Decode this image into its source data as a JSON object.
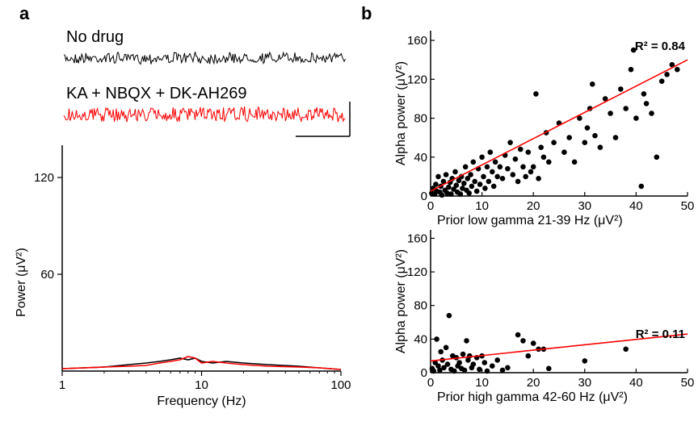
{
  "panels": {
    "a": "a",
    "b": "b"
  },
  "traces": {
    "no_drug_label": "No drug",
    "drug_label": "KA + NBQX + DK-AH269",
    "colors": {
      "no_drug": "#000000",
      "drug": "#ff0000"
    }
  },
  "chart_data": [
    {
      "type": "line",
      "panel": "a",
      "xlabel": "Frequency (Hz)",
      "ylabel": "Power (μV²)",
      "xscale": "log",
      "xlim": [
        1,
        100
      ],
      "ylim": [
        0,
        140
      ],
      "xticks": [
        1,
        10,
        100
      ],
      "yticks": [
        60,
        120
      ],
      "series": [
        {
          "color": "#000000",
          "x": [
            1,
            2,
            3,
            4,
            5,
            6,
            7,
            8,
            9,
            10,
            12,
            15,
            20,
            30,
            50,
            70,
            100
          ],
          "y": [
            1.5,
            2.5,
            4,
            5,
            6,
            7,
            8,
            7,
            8,
            6,
            5,
            6,
            5,
            4,
            3,
            2,
            1
          ]
        },
        {
          "color": "#ff0000",
          "x": [
            1,
            2,
            3,
            4,
            5,
            6,
            7,
            8,
            9,
            10,
            12,
            15,
            20,
            30,
            50,
            70,
            100
          ],
          "y": [
            1.5,
            2.5,
            3,
            3.5,
            5,
            6,
            7,
            9,
            8,
            5,
            6,
            5,
            4,
            3,
            2.5,
            2,
            1
          ]
        }
      ]
    },
    {
      "type": "scatter",
      "panel": "b-top",
      "xlabel": "Prior low gamma  21-39 Hz (μV²)",
      "ylabel": "Alpha power (μV²)",
      "xlim": [
        0,
        50
      ],
      "ylim": [
        0,
        170
      ],
      "xticks": [
        0,
        10,
        20,
        30,
        40,
        50
      ],
      "yticks": [
        0,
        40,
        80,
        120,
        160
      ],
      "annotation": "R² = 0.84",
      "fit": {
        "x": [
          0,
          50
        ],
        "y": [
          5,
          140
        ],
        "color": "#ff0000"
      },
      "points": [
        [
          0.2,
          3
        ],
        [
          0.5,
          8
        ],
        [
          0.8,
          2
        ],
        [
          1,
          12
        ],
        [
          1.2,
          5
        ],
        [
          1.5,
          20
        ],
        [
          1.8,
          4
        ],
        [
          2,
          10
        ],
        [
          2.2,
          1
        ],
        [
          2.5,
          15
        ],
        [
          2.8,
          6
        ],
        [
          3,
          22
        ],
        [
          3.2,
          3
        ],
        [
          3.5,
          9
        ],
        [
          3.8,
          14
        ],
        [
          4,
          2
        ],
        [
          4.2,
          18
        ],
        [
          4.5,
          7
        ],
        [
          4.8,
          25
        ],
        [
          5,
          11
        ],
        [
          5.2,
          4
        ],
        [
          5.5,
          16
        ],
        [
          5.8,
          2
        ],
        [
          6,
          20
        ],
        [
          6.2,
          8
        ],
        [
          6.5,
          13
        ],
        [
          6.8,
          30
        ],
        [
          7,
          6
        ],
        [
          7.2,
          18
        ],
        [
          7.5,
          3
        ],
        [
          7.8,
          22
        ],
        [
          8,
          10
        ],
        [
          8.3,
          35
        ],
        [
          8.6,
          15
        ],
        [
          9,
          5
        ],
        [
          9.3,
          28
        ],
        [
          9.6,
          12
        ],
        [
          10,
          40
        ],
        [
          10.3,
          20
        ],
        [
          10.6,
          8
        ],
        [
          11,
          30
        ],
        [
          11.3,
          15
        ],
        [
          11.6,
          45
        ],
        [
          12,
          25
        ],
        [
          12.3,
          10
        ],
        [
          12.6,
          35
        ],
        [
          13,
          20
        ],
        [
          13.5,
          30
        ],
        [
          14,
          18
        ],
        [
          14.5,
          42
        ],
        [
          15,
          28
        ],
        [
          15.5,
          55
        ],
        [
          16,
          22
        ],
        [
          16.5,
          38
        ],
        [
          17,
          15
        ],
        [
          17.5,
          48
        ],
        [
          18,
          30
        ],
        [
          18.5,
          20
        ],
        [
          19,
          45
        ],
        [
          19.5,
          25
        ],
        [
          20,
          30
        ],
        [
          20.5,
          105
        ],
        [
          21,
          18
        ],
        [
          21.5,
          50
        ],
        [
          22,
          40
        ],
        [
          22.5,
          65
        ],
        [
          23,
          35
        ],
        [
          24,
          55
        ],
        [
          25,
          75
        ],
        [
          26,
          45
        ],
        [
          27,
          60
        ],
        [
          28,
          35
        ],
        [
          29,
          80
        ],
        [
          30,
          55
        ],
        [
          30.5,
          70
        ],
        [
          31,
          90
        ],
        [
          31.5,
          115
        ],
        [
          32,
          62
        ],
        [
          33,
          50
        ],
        [
          34,
          100
        ],
        [
          35,
          85
        ],
        [
          36,
          60
        ],
        [
          37,
          110
        ],
        [
          38,
          90
        ],
        [
          39,
          130
        ],
        [
          39.5,
          150
        ],
        [
          40,
          80
        ],
        [
          41,
          10
        ],
        [
          41.5,
          105
        ],
        [
          42,
          95
        ],
        [
          43,
          85
        ],
        [
          44,
          40
        ],
        [
          45,
          118
        ],
        [
          46,
          125
        ],
        [
          47,
          135
        ],
        [
          48,
          130
        ]
      ]
    },
    {
      "type": "scatter",
      "panel": "b-bottom",
      "xlabel": "Prior high gamma  42-60 Hz (μV²)",
      "ylabel": "Alpha power (μV²)",
      "xlim": [
        0,
        50
      ],
      "ylim": [
        0,
        170
      ],
      "xticks": [
        0,
        10,
        20,
        30,
        40,
        50
      ],
      "yticks": [
        0,
        40,
        80,
        120,
        160
      ],
      "annotation": "R² = 0.11",
      "fit": {
        "x": [
          0,
          50
        ],
        "y": [
          14,
          46
        ],
        "color": "#ff0000"
      },
      "points": [
        [
          0.3,
          5
        ],
        [
          0.6,
          2
        ],
        [
          0.9,
          12
        ],
        [
          1.2,
          40
        ],
        [
          1.5,
          8
        ],
        [
          1.8,
          3
        ],
        [
          2,
          25
        ],
        [
          2.3,
          15
        ],
        [
          2.6,
          6
        ],
        [
          3,
          30
        ],
        [
          3.3,
          10
        ],
        [
          3.6,
          68
        ],
        [
          4,
          4
        ],
        [
          4.3,
          20
        ],
        [
          4.6,
          2
        ],
        [
          5,
          18
        ],
        [
          5.3,
          8
        ],
        [
          5.6,
          12
        ],
        [
          6,
          5
        ],
        [
          6.3,
          22
        ],
        [
          6.6,
          3
        ],
        [
          7,
          38
        ],
        [
          7.3,
          15
        ],
        [
          7.6,
          20
        ],
        [
          8,
          6
        ],
        [
          8.3,
          10
        ],
        [
          9,
          18
        ],
        [
          9.5,
          4
        ],
        [
          10,
          20
        ],
        [
          10.5,
          12
        ],
        [
          11,
          2
        ],
        [
          12,
          8
        ],
        [
          13,
          15
        ],
        [
          14,
          3
        ],
        [
          15,
          6
        ],
        [
          17,
          45
        ],
        [
          18,
          38
        ],
        [
          19,
          20
        ],
        [
          20,
          35
        ],
        [
          21,
          28
        ],
        [
          22,
          28
        ],
        [
          23,
          5
        ],
        [
          30,
          14
        ],
        [
          38,
          28
        ]
      ]
    }
  ]
}
